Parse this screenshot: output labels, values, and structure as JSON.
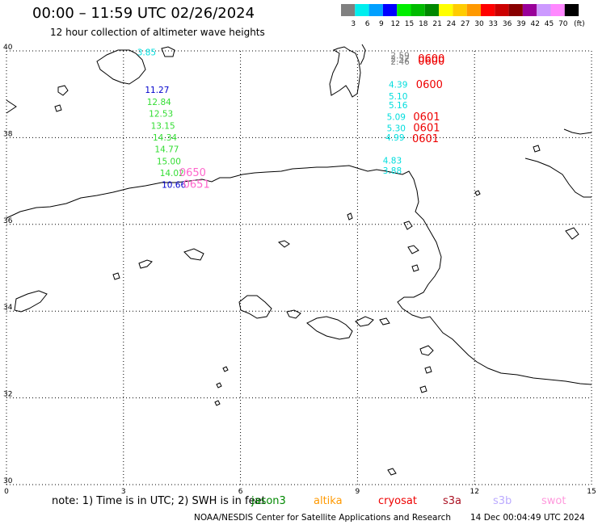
{
  "title": "00:00 – 11:59 UTC 02/26/2024",
  "subtitle": "12 hour collection of altimeter wave heights",
  "legend": {
    "unit": "(ft)",
    "bins": [
      {
        "label": "3",
        "color": "#808080"
      },
      {
        "label": "6",
        "color": "#00eeee"
      },
      {
        "label": "9",
        "color": "#00a0ff"
      },
      {
        "label": "12",
        "color": "#0000ff"
      },
      {
        "label": "15",
        "color": "#00ee00"
      },
      {
        "label": "18",
        "color": "#00bb00"
      },
      {
        "label": "21",
        "color": "#008800"
      },
      {
        "label": "24",
        "color": "#ffff00"
      },
      {
        "label": "27",
        "color": "#ffcc00"
      },
      {
        "label": "30",
        "color": "#ff9900"
      },
      {
        "label": "33",
        "color": "#ff0000"
      },
      {
        "label": "36",
        "color": "#cc0000"
      },
      {
        "label": "39",
        "color": "#880000"
      },
      {
        "label": "42",
        "color": "#990099"
      },
      {
        "label": "45",
        "color": "#cc99ff"
      },
      {
        "label": "70",
        "color": "#ff88ff"
      },
      {
        "label": "",
        "color": "#000000"
      }
    ]
  },
  "axes": {
    "lon_ticks": [
      "0",
      "3",
      "6",
      "9",
      "12",
      "15"
    ],
    "lat_ticks": [
      "40",
      "38",
      "36",
      "34",
      "32",
      "30"
    ]
  },
  "wave_readings": [
    {
      "value": "3.85",
      "lon": 3.35,
      "lat": 39.9,
      "color": "#00dddd"
    },
    {
      "value": "11.27",
      "lon": 3.55,
      "lat": 39.03,
      "color": "#0000cc"
    },
    {
      "value": "12.84",
      "lon": 3.6,
      "lat": 38.75,
      "color": "#33dd33"
    },
    {
      "value": "12.53",
      "lon": 3.65,
      "lat": 38.48,
      "color": "#33dd33"
    },
    {
      "value": "13.15",
      "lon": 3.7,
      "lat": 38.2,
      "color": "#33dd33"
    },
    {
      "value": "14.34",
      "lon": 3.75,
      "lat": 37.93,
      "color": "#33dd33"
    },
    {
      "value": "14.77",
      "lon": 3.8,
      "lat": 37.66,
      "color": "#33dd33"
    },
    {
      "value": "15.00",
      "lon": 3.85,
      "lat": 37.38,
      "color": "#33dd33"
    },
    {
      "value": "14.02",
      "lon": 3.93,
      "lat": 37.11,
      "color": "#33dd33"
    },
    {
      "value": "10.66",
      "lon": 3.98,
      "lat": 36.84,
      "color": "#0000cc"
    },
    {
      "value": "2.59",
      "lon": 9.85,
      "lat": 39.82,
      "color": "#808080"
    },
    {
      "value": "2.52",
      "lon": 9.85,
      "lat": 39.75,
      "color": "#808080"
    },
    {
      "value": "2.46",
      "lon": 9.85,
      "lat": 39.68,
      "color": "#808080"
    },
    {
      "value": "4.39",
      "lon": 9.8,
      "lat": 39.15,
      "color": "#00dddd"
    },
    {
      "value": "5.10",
      "lon": 9.8,
      "lat": 38.88,
      "color": "#00dddd"
    },
    {
      "value": "5.16",
      "lon": 9.8,
      "lat": 38.68,
      "color": "#00dddd"
    },
    {
      "value": "5.09",
      "lon": 9.75,
      "lat": 38.41,
      "color": "#00dddd"
    },
    {
      "value": "5.30",
      "lon": 9.75,
      "lat": 38.15,
      "color": "#00dddd"
    },
    {
      "value": "4.99",
      "lon": 9.72,
      "lat": 37.93,
      "color": "#00dddd"
    },
    {
      "value": "4.83",
      "lon": 9.65,
      "lat": 37.4,
      "color": "#00dddd"
    },
    {
      "value": "3.88",
      "lon": 9.65,
      "lat": 37.17,
      "color": "#00dddd"
    }
  ],
  "time_labels": [
    {
      "value": "0600",
      "lon": 10.55,
      "lat": 39.74,
      "color": "#ee0000"
    },
    {
      "value": "0600",
      "lon": 10.55,
      "lat": 39.68,
      "color": "#ee0000"
    },
    {
      "value": "0600",
      "lon": 10.5,
      "lat": 39.14,
      "color": "#ee0000"
    },
    {
      "value": "0601",
      "lon": 10.43,
      "lat": 38.4,
      "color": "#ee0000"
    },
    {
      "value": "0601",
      "lon": 10.43,
      "lat": 38.15,
      "color": "#ee0000"
    },
    {
      "value": "0601",
      "lon": 10.4,
      "lat": 37.9,
      "color": "#ee0000"
    },
    {
      "value": "0650",
      "lon": 4.43,
      "lat": 37.11,
      "color": "#ff66cc"
    },
    {
      "value": "0651",
      "lon": 4.53,
      "lat": 36.84,
      "color": "#ff66cc"
    }
  ],
  "note": {
    "part1": "note:  1) Time is in UTC; 2) SWH is in feet",
    "overprint": "jason3"
  },
  "satellites": [
    {
      "name": "altika",
      "color": "#ff9900"
    },
    {
      "name": "cryosat",
      "color": "#ee0000"
    },
    {
      "name": "s3a",
      "color": "#aa1122"
    },
    {
      "name": "s3b",
      "color": "#bbaaff"
    },
    {
      "name": "swot",
      "color": "#ff99dd"
    }
  ],
  "credit": "NOAA/NESDIS Center for Satellite Applications and Research",
  "generated": "14 Dec 00:04:49 UTC 2024"
}
